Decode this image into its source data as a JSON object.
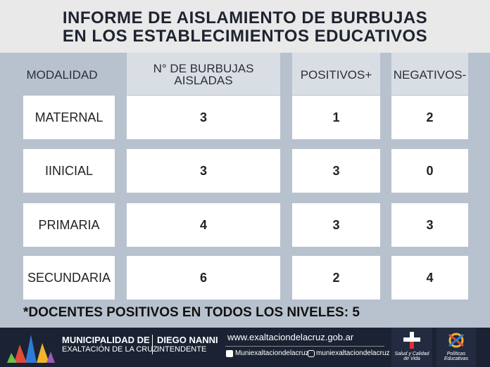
{
  "header": {
    "title": [
      "INFORME DE AISLAMIENTO DE BURBUJAS",
      "EN LOS ESTABLECIMIENTOS EDUCATIVOS"
    ]
  },
  "table": {
    "columns": [
      "MODALIDAD",
      "N° DE BURBUJAS AISLADAS",
      "POSITIVOS+",
      "NEGATIVOS-"
    ],
    "rows": [
      [
        "MATERNAL",
        3,
        1,
        2
      ],
      [
        "IINICIAL",
        3,
        3,
        0
      ],
      [
        "PRIMARIA",
        4,
        3,
        3
      ],
      [
        "SECUNDARIA",
        6,
        2,
        4
      ]
    ]
  },
  "note": "*DOCENTES POSITIVOS EN TODOS LOS NIVELES: 5",
  "footer": {
    "municipality": [
      "MUNICIPALIDAD DE",
      "EXALTACIÓN DE LA CRUZ"
    ],
    "mayor": [
      "DIEGO NANNI",
      "INTENDENTE"
    ],
    "website": "www.exaltaciondelacruz.gob.ar",
    "facebook": "Muniexaltaciondelacruz",
    "instagram": "muniexaltaciondelacruz",
    "logos": [
      "Salud y Calidad de Vida",
      "Políticas Educativas"
    ]
  }
}
